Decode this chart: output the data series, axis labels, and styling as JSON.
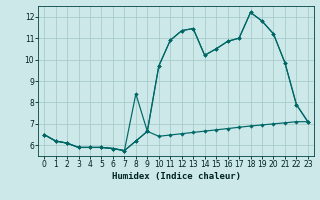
{
  "xlabel": "Humidex (Indice chaleur)",
  "bg_color": "#cce8e8",
  "grid_color": "#aacccc",
  "line_color": "#006666",
  "ylim": [
    5.5,
    12.5
  ],
  "xlim": [
    -0.5,
    23.5
  ],
  "yticks": [
    6,
    7,
    8,
    9,
    10,
    11,
    12
  ],
  "xticks": [
    0,
    1,
    2,
    3,
    4,
    5,
    6,
    7,
    8,
    9,
    10,
    11,
    12,
    13,
    14,
    15,
    16,
    17,
    18,
    19,
    20,
    21,
    22,
    23
  ],
  "line1_x": [
    0,
    1,
    2,
    3,
    4,
    5,
    6,
    7,
    8,
    9,
    10,
    11,
    12,
    13,
    14,
    15,
    16,
    17,
    18,
    19,
    20,
    21,
    22,
    23
  ],
  "line1_y": [
    6.5,
    6.2,
    6.1,
    5.9,
    5.9,
    5.9,
    5.85,
    5.75,
    6.2,
    6.65,
    9.7,
    10.9,
    11.35,
    11.45,
    10.2,
    10.5,
    10.85,
    11.0,
    12.2,
    11.8,
    11.2,
    9.85,
    7.9,
    7.1
  ],
  "line2_x": [
    0,
    1,
    2,
    3,
    4,
    5,
    6,
    7,
    8,
    9,
    10,
    11,
    12,
    13,
    14,
    15,
    16,
    17,
    18,
    19,
    20,
    21,
    22,
    23
  ],
  "line2_y": [
    6.5,
    6.2,
    6.1,
    5.9,
    5.9,
    5.9,
    5.85,
    5.75,
    8.4,
    6.65,
    9.7,
    10.9,
    11.35,
    11.45,
    10.2,
    10.5,
    10.85,
    11.0,
    12.2,
    11.8,
    11.2,
    9.85,
    7.9,
    7.1
  ],
  "line3_x": [
    0,
    1,
    2,
    3,
    4,
    5,
    6,
    7,
    8,
    9,
    10,
    11,
    12,
    13,
    14,
    15,
    16,
    17,
    18,
    19,
    20,
    21,
    22,
    23
  ],
  "line3_y": [
    6.5,
    6.2,
    6.1,
    5.9,
    5.9,
    5.9,
    5.85,
    5.75,
    6.2,
    6.65,
    6.42,
    6.48,
    6.54,
    6.6,
    6.66,
    6.72,
    6.78,
    6.84,
    6.9,
    6.95,
    7.0,
    7.05,
    7.1,
    7.1
  ]
}
